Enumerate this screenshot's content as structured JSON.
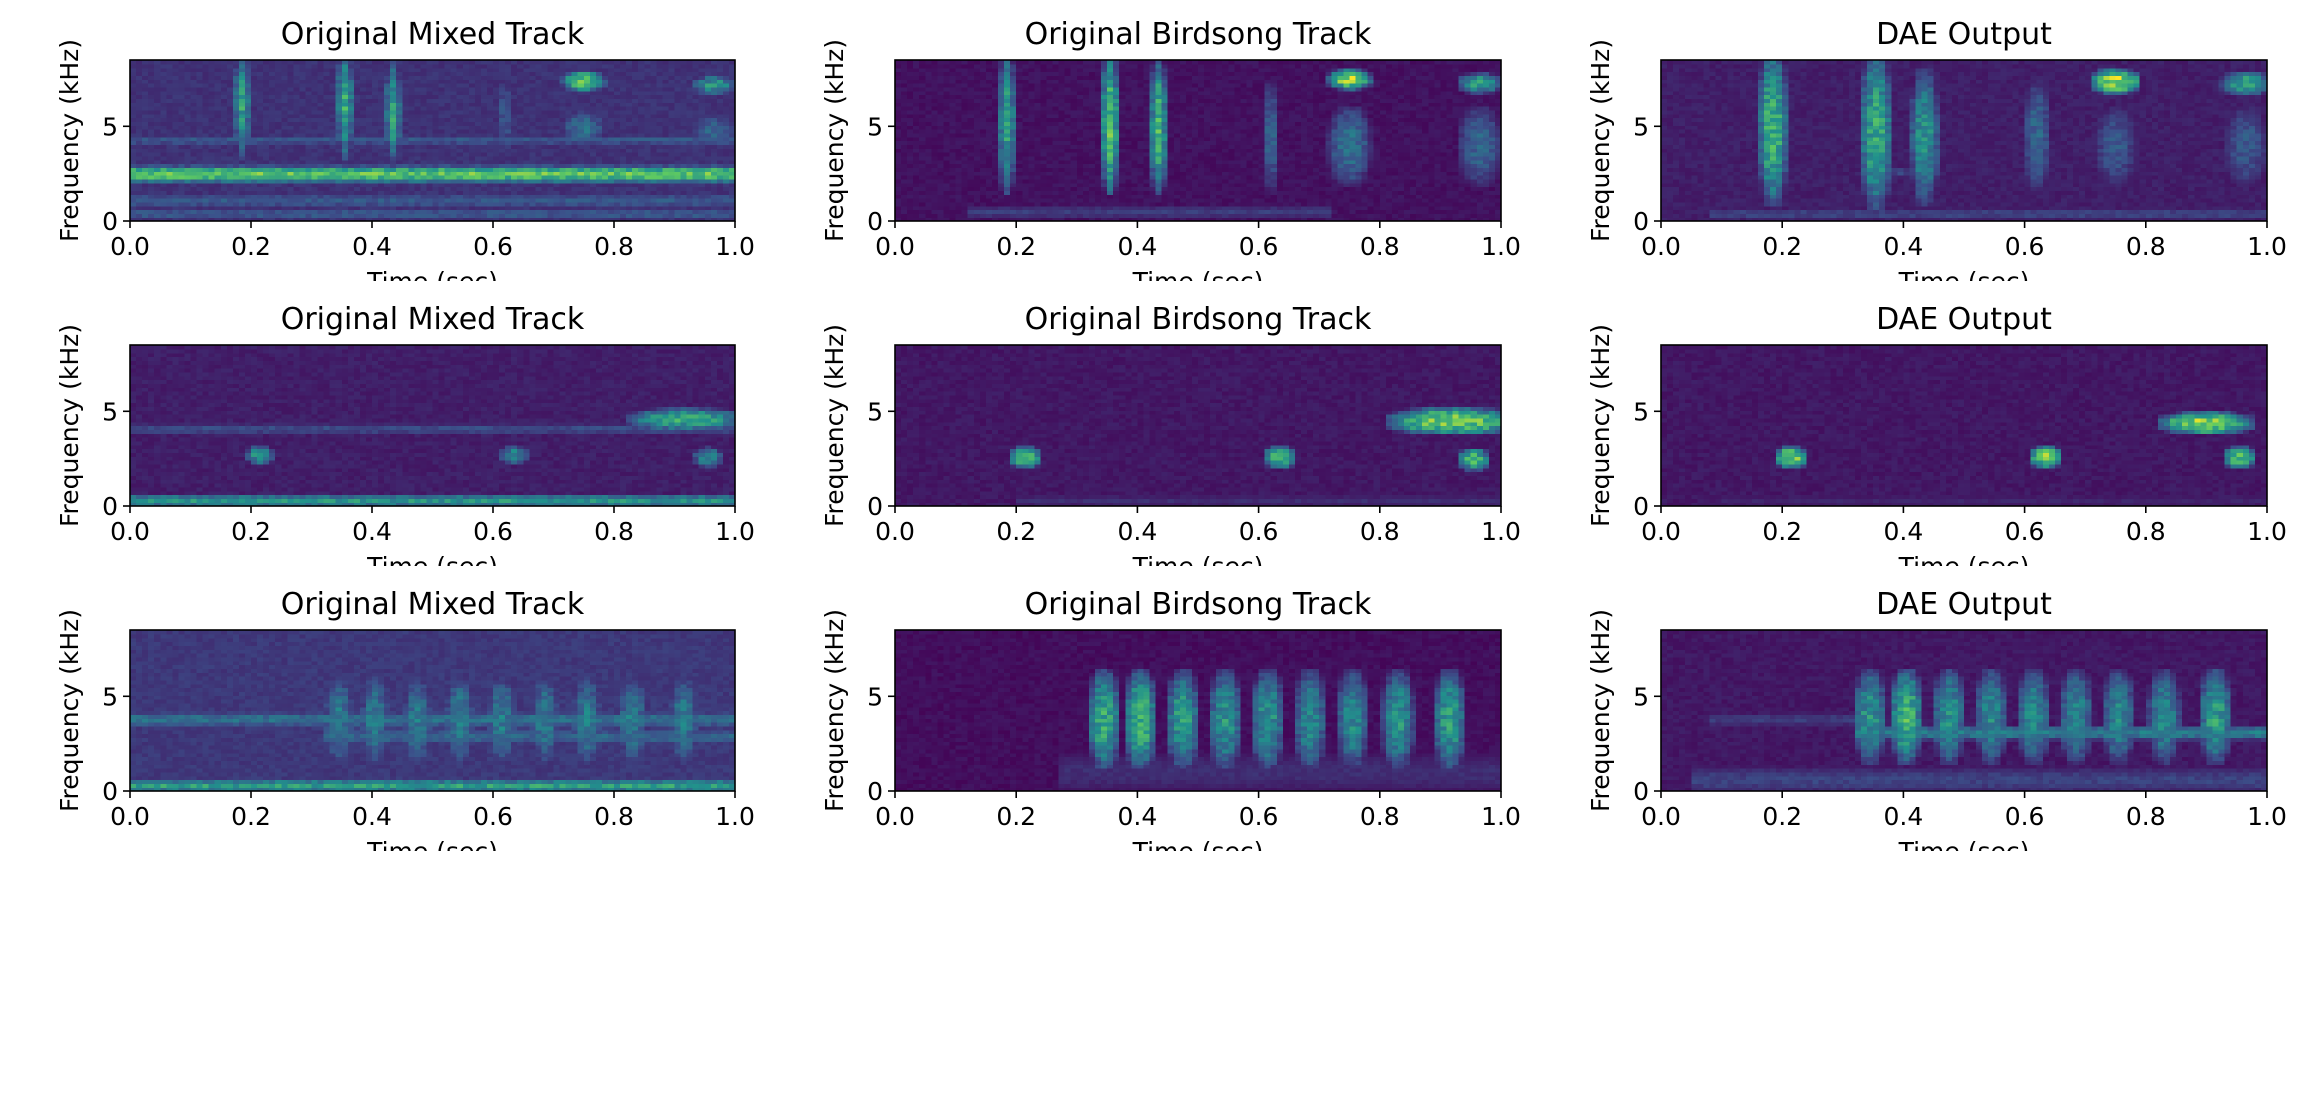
{
  "colormap": [
    "#440154",
    "#3b528b",
    "#21918c",
    "#5ec962",
    "#fde725"
  ],
  "chart_data": [
    {
      "type": "heatmap",
      "title": "Original Mixed Track",
      "xlabel": "Time (sec)",
      "ylabel": "Frequency (kHz)",
      "xlim": [
        0,
        1
      ],
      "ylim": [
        0,
        8.5
      ],
      "xticks": [
        "0.0",
        "0.2",
        "0.4",
        "0.6",
        "0.8",
        "1.0"
      ],
      "yticks": [
        "0",
        "5"
      ],
      "background": 0.12,
      "bands": [
        {
          "y": 2.5,
          "h": 0.55,
          "x0": 0,
          "x1": 1,
          "v": 0.78
        },
        {
          "y": 1.1,
          "h": 0.45,
          "x0": 0,
          "x1": 1,
          "v": 0.3
        },
        {
          "y": 4.3,
          "h": 0.25,
          "x0": 0,
          "x1": 1,
          "v": 0.3
        },
        {
          "y": 0.4,
          "h": 0.3,
          "x0": 0,
          "x1": 1,
          "v": 0.3
        }
      ],
      "events": [
        {
          "x": 0.185,
          "w": 0.012,
          "y": 6.2,
          "h": 5.0,
          "v": 0.6
        },
        {
          "x": 0.355,
          "w": 0.012,
          "y": 6.2,
          "h": 5.0,
          "v": 0.65
        },
        {
          "x": 0.435,
          "w": 0.012,
          "y": 5.8,
          "h": 4.5,
          "v": 0.6
        },
        {
          "x": 0.62,
          "w": 0.01,
          "y": 5.5,
          "h": 4.0,
          "v": 0.3
        },
        {
          "x": 0.75,
          "w": 0.05,
          "y": 7.4,
          "h": 0.9,
          "v": 0.8
        },
        {
          "x": 0.75,
          "w": 0.05,
          "y": 5.0,
          "h": 1.4,
          "v": 0.4
        },
        {
          "x": 0.965,
          "w": 0.05,
          "y": 7.2,
          "h": 0.9,
          "v": 0.55
        },
        {
          "x": 0.965,
          "w": 0.05,
          "y": 4.8,
          "h": 1.4,
          "v": 0.35
        }
      ]
    },
    {
      "type": "heatmap",
      "title": "Original Birdsong Track",
      "xlabel": "Time (sec)",
      "ylabel": "Frequency (kHz)",
      "xlim": [
        0,
        1
      ],
      "ylim": [
        0,
        8.5
      ],
      "xticks": [
        "0.0",
        "0.2",
        "0.4",
        "0.6",
        "0.8",
        "1.0"
      ],
      "yticks": [
        "0",
        "5"
      ],
      "background": 0.02,
      "bands": [
        {
          "y": 0.5,
          "h": 0.35,
          "x0": 0.12,
          "x1": 0.72,
          "v": 0.2
        }
      ],
      "events": [
        {
          "x": 0.185,
          "w": 0.014,
          "y": 5.2,
          "h": 6.4,
          "v": 0.6
        },
        {
          "x": 0.355,
          "w": 0.014,
          "y": 5.2,
          "h": 6.4,
          "v": 0.75
        },
        {
          "x": 0.435,
          "w": 0.014,
          "y": 5.0,
          "h": 6.0,
          "v": 0.7
        },
        {
          "x": 0.62,
          "w": 0.01,
          "y": 4.5,
          "h": 5.0,
          "v": 0.35
        },
        {
          "x": 0.75,
          "w": 0.05,
          "y": 7.5,
          "h": 0.9,
          "v": 0.9
        },
        {
          "x": 0.75,
          "w": 0.05,
          "y": 4.0,
          "h": 3.6,
          "v": 0.4
        },
        {
          "x": 0.965,
          "w": 0.05,
          "y": 7.3,
          "h": 0.9,
          "v": 0.6
        },
        {
          "x": 0.965,
          "w": 0.05,
          "y": 4.0,
          "h": 3.6,
          "v": 0.35
        }
      ]
    },
    {
      "type": "heatmap",
      "title": "DAE Output",
      "xlabel": "Time (sec)",
      "ylabel": "Frequency (kHz)",
      "xlim": [
        0,
        1
      ],
      "ylim": [
        0,
        8.5
      ],
      "xticks": [
        "0.0",
        "0.2",
        "0.4",
        "0.6",
        "0.8",
        "1.0"
      ],
      "yticks": [
        "0",
        "5"
      ],
      "background": 0.06,
      "bands": [
        {
          "y": 0.4,
          "h": 0.35,
          "x0": 0.08,
          "x1": 1,
          "v": 0.22
        }
      ],
      "events": [
        {
          "x": 0.185,
          "w": 0.03,
          "y": 5.0,
          "h": 7.0,
          "v": 0.7
        },
        {
          "x": 0.355,
          "w": 0.035,
          "y": 4.8,
          "h": 7.0,
          "v": 0.65
        },
        {
          "x": 0.435,
          "w": 0.03,
          "y": 4.5,
          "h": 6.0,
          "v": 0.55
        },
        {
          "x": 0.62,
          "w": 0.03,
          "y": 4.5,
          "h": 5.0,
          "v": 0.35
        },
        {
          "x": 0.75,
          "w": 0.06,
          "y": 7.4,
          "h": 1.1,
          "v": 0.95
        },
        {
          "x": 0.75,
          "w": 0.05,
          "y": 4.0,
          "h": 3.6,
          "v": 0.3
        },
        {
          "x": 0.965,
          "w": 0.06,
          "y": 7.3,
          "h": 1.1,
          "v": 0.6
        },
        {
          "x": 0.965,
          "w": 0.05,
          "y": 4.0,
          "h": 3.6,
          "v": 0.3
        },
        {
          "x": 0.38,
          "w": 0.1,
          "y": 2.6,
          "h": 0.4,
          "v": 0.25
        }
      ]
    },
    {
      "type": "heatmap",
      "title": "Original Mixed Track",
      "xlabel": "Time (sec)",
      "ylabel": "Frequency (kHz)",
      "xlim": [
        0,
        1
      ],
      "ylim": [
        0,
        8.5
      ],
      "xticks": [
        "0.0",
        "0.2",
        "0.4",
        "0.6",
        "0.8",
        "1.0"
      ],
      "yticks": [
        "0",
        "5"
      ],
      "background": 0.06,
      "bands": [
        {
          "y": 0.3,
          "h": 0.35,
          "x0": 0,
          "x1": 1,
          "v": 0.55
        },
        {
          "y": 4.1,
          "h": 0.3,
          "x0": 0,
          "x1": 1,
          "v": 0.25
        }
      ],
      "events": [
        {
          "x": 0.215,
          "w": 0.03,
          "y": 2.7,
          "h": 0.9,
          "v": 0.55
        },
        {
          "x": 0.635,
          "w": 0.03,
          "y": 2.7,
          "h": 0.9,
          "v": 0.5
        },
        {
          "x": 0.92,
          "w": 0.16,
          "y": 4.6,
          "h": 1.0,
          "v": 0.65
        },
        {
          "x": 0.955,
          "w": 0.03,
          "y": 2.6,
          "h": 0.9,
          "v": 0.5
        }
      ]
    },
    {
      "type": "heatmap",
      "title": "Original Birdsong Track",
      "xlabel": "Time (sec)",
      "ylabel": "Frequency (kHz)",
      "xlim": [
        0,
        1
      ],
      "ylim": [
        0,
        8.5
      ],
      "xticks": [
        "0.0",
        "0.2",
        "0.4",
        "0.6",
        "0.8",
        "1.0"
      ],
      "yticks": [
        "0",
        "5"
      ],
      "background": 0.04,
      "bands": [
        {
          "y": 0.3,
          "h": 0.3,
          "x0": 0.2,
          "x1": 1,
          "v": 0.15
        }
      ],
      "events": [
        {
          "x": 0.215,
          "w": 0.035,
          "y": 2.6,
          "h": 1.0,
          "v": 0.75
        },
        {
          "x": 0.635,
          "w": 0.035,
          "y": 2.6,
          "h": 1.0,
          "v": 0.75
        },
        {
          "x": 0.92,
          "w": 0.17,
          "y": 4.5,
          "h": 1.2,
          "v": 0.85
        },
        {
          "x": 0.955,
          "w": 0.035,
          "y": 2.5,
          "h": 1.0,
          "v": 0.7
        }
      ]
    },
    {
      "type": "heatmap",
      "title": "DAE Output",
      "xlabel": "Time (sec)",
      "ylabel": "Frequency (kHz)",
      "xlim": [
        0,
        1
      ],
      "ylim": [
        0,
        8.5
      ],
      "xticks": [
        "0.0",
        "0.2",
        "0.4",
        "0.6",
        "0.8",
        "1.0"
      ],
      "yticks": [
        "0",
        "5"
      ],
      "background": 0.04,
      "bands": [
        {
          "y": 0.3,
          "h": 0.3,
          "x0": 0.1,
          "x1": 1,
          "v": 0.12
        }
      ],
      "events": [
        {
          "x": 0.215,
          "w": 0.035,
          "y": 2.6,
          "h": 1.0,
          "v": 0.85
        },
        {
          "x": 0.635,
          "w": 0.035,
          "y": 2.6,
          "h": 1.0,
          "v": 0.85
        },
        {
          "x": 0.9,
          "w": 0.12,
          "y": 4.4,
          "h": 1.0,
          "v": 0.9
        },
        {
          "x": 0.955,
          "w": 0.035,
          "y": 2.6,
          "h": 1.0,
          "v": 0.75
        }
      ]
    },
    {
      "type": "heatmap",
      "title": "Original Mixed Track",
      "xlabel": "Time (sec)",
      "ylabel": "Frequency (kHz)",
      "xlim": [
        0,
        1
      ],
      "ylim": [
        0,
        8.5
      ],
      "xticks": [
        "0.0",
        "0.2",
        "0.4",
        "0.6",
        "0.8",
        "1.0"
      ],
      "yticks": [
        "0",
        "5"
      ],
      "background": 0.14,
      "bands": [
        {
          "y": 0.3,
          "h": 0.35,
          "x0": 0,
          "x1": 1,
          "v": 0.6
        },
        {
          "y": 3.8,
          "h": 0.5,
          "x0": 0,
          "x1": 1,
          "v": 0.4
        },
        {
          "y": 2.9,
          "h": 0.5,
          "x0": 0.32,
          "x1": 1,
          "v": 0.35
        }
      ],
      "events": [
        {
          "x": 0.345,
          "w": 0.03,
          "y": 3.8,
          "h": 4.0,
          "v": 0.45
        },
        {
          "x": 0.405,
          "w": 0.03,
          "y": 3.8,
          "h": 4.0,
          "v": 0.45
        },
        {
          "x": 0.475,
          "w": 0.03,
          "y": 3.8,
          "h": 4.0,
          "v": 0.45
        },
        {
          "x": 0.545,
          "w": 0.03,
          "y": 3.8,
          "h": 4.0,
          "v": 0.45
        },
        {
          "x": 0.615,
          "w": 0.03,
          "y": 3.8,
          "h": 4.0,
          "v": 0.45
        },
        {
          "x": 0.685,
          "w": 0.03,
          "y": 3.8,
          "h": 4.0,
          "v": 0.45
        },
        {
          "x": 0.755,
          "w": 0.03,
          "y": 3.8,
          "h": 4.0,
          "v": 0.45
        },
        {
          "x": 0.83,
          "w": 0.03,
          "y": 3.8,
          "h": 4.0,
          "v": 0.45
        },
        {
          "x": 0.915,
          "w": 0.03,
          "y": 3.8,
          "h": 4.0,
          "v": 0.45
        }
      ]
    },
    {
      "type": "heatmap",
      "title": "Original Birdsong Track",
      "xlabel": "Time (sec)",
      "ylabel": "Frequency (kHz)",
      "xlim": [
        0,
        1
      ],
      "ylim": [
        0,
        8.5
      ],
      "xticks": [
        "0.0",
        "0.2",
        "0.4",
        "0.6",
        "0.8",
        "1.0"
      ],
      "yticks": [
        "0",
        "5"
      ],
      "background": 0.01,
      "bands": [
        {
          "y": 1.0,
          "h": 1.6,
          "x0": 0.27,
          "x1": 1,
          "v": 0.15
        }
      ],
      "events": [
        {
          "x": 0.345,
          "w": 0.035,
          "y": 3.8,
          "h": 4.4,
          "v": 0.65
        },
        {
          "x": 0.405,
          "w": 0.035,
          "y": 3.8,
          "h": 4.4,
          "v": 0.7
        },
        {
          "x": 0.475,
          "w": 0.035,
          "y": 3.8,
          "h": 4.4,
          "v": 0.6
        },
        {
          "x": 0.545,
          "w": 0.035,
          "y": 3.8,
          "h": 4.4,
          "v": 0.55
        },
        {
          "x": 0.615,
          "w": 0.035,
          "y": 3.8,
          "h": 4.4,
          "v": 0.55
        },
        {
          "x": 0.685,
          "w": 0.035,
          "y": 3.8,
          "h": 4.4,
          "v": 0.5
        },
        {
          "x": 0.755,
          "w": 0.035,
          "y": 3.8,
          "h": 4.4,
          "v": 0.5
        },
        {
          "x": 0.83,
          "w": 0.035,
          "y": 3.8,
          "h": 4.4,
          "v": 0.55
        },
        {
          "x": 0.915,
          "w": 0.035,
          "y": 3.8,
          "h": 4.4,
          "v": 0.6
        }
      ]
    },
    {
      "type": "heatmap",
      "title": "DAE Output",
      "xlabel": "Time (sec)",
      "ylabel": "Frequency (kHz)",
      "xlim": [
        0,
        1
      ],
      "ylim": [
        0,
        8.5
      ],
      "xticks": [
        "0.0",
        "0.2",
        "0.4",
        "0.6",
        "0.8",
        "1.0"
      ],
      "yticks": [
        "0",
        "5"
      ],
      "background": 0.04,
      "bands": [
        {
          "y": 0.6,
          "h": 1.0,
          "x0": 0.05,
          "x1": 1,
          "v": 0.22
        },
        {
          "y": 3.1,
          "h": 0.45,
          "x0": 0.32,
          "x1": 1,
          "v": 0.45
        },
        {
          "y": 3.8,
          "h": 0.4,
          "x0": 0.08,
          "x1": 0.32,
          "v": 0.2
        }
      ],
      "events": [
        {
          "x": 0.345,
          "w": 0.035,
          "y": 4.0,
          "h": 4.2,
          "v": 0.55
        },
        {
          "x": 0.405,
          "w": 0.035,
          "y": 4.0,
          "h": 4.2,
          "v": 0.7
        },
        {
          "x": 0.475,
          "w": 0.035,
          "y": 4.0,
          "h": 4.2,
          "v": 0.55
        },
        {
          "x": 0.545,
          "w": 0.035,
          "y": 4.0,
          "h": 4.2,
          "v": 0.5
        },
        {
          "x": 0.615,
          "w": 0.035,
          "y": 4.0,
          "h": 4.2,
          "v": 0.5
        },
        {
          "x": 0.685,
          "w": 0.035,
          "y": 4.0,
          "h": 4.2,
          "v": 0.5
        },
        {
          "x": 0.755,
          "w": 0.035,
          "y": 4.0,
          "h": 4.2,
          "v": 0.5
        },
        {
          "x": 0.83,
          "w": 0.035,
          "y": 4.0,
          "h": 4.2,
          "v": 0.5
        },
        {
          "x": 0.915,
          "w": 0.035,
          "y": 4.0,
          "h": 4.2,
          "v": 0.6
        }
      ]
    }
  ]
}
